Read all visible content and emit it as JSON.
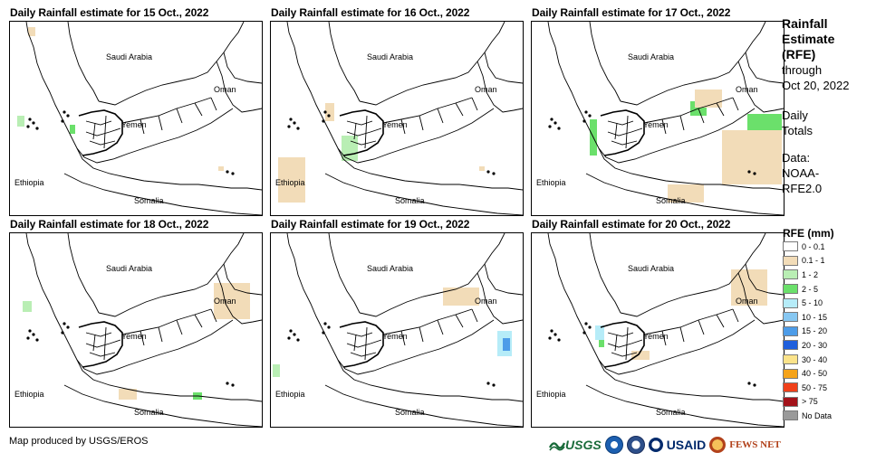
{
  "panels": [
    {
      "title": "Daily Rainfall estimate for 15 Oct., 2022",
      "date": "15 Oct., 2022"
    },
    {
      "title": "Daily Rainfall estimate for 16 Oct., 2022",
      "date": "16 Oct., 2022"
    },
    {
      "title": "Daily Rainfall estimate for 17 Oct., 2022",
      "date": "17 Oct., 2022"
    },
    {
      "title": "Daily Rainfall estimate for 18 Oct., 2022",
      "date": "18 Oct., 2022"
    },
    {
      "title": "Daily Rainfall estimate for 19 Oct., 2022",
      "date": "19 Oct., 2022"
    },
    {
      "title": "Daily Rainfall estimate for 20 Oct., 2022",
      "date": "20 Oct., 2022"
    }
  ],
  "map_labels": {
    "saudi": "Saudi Arabia",
    "oman": "Oman",
    "yemen": "Yemen",
    "ethiopia": "Ethiopia",
    "somalia": "Somalia"
  },
  "sidebar": {
    "title_1": "Rainfall",
    "title_2": "Estimate",
    "title_3": "(RFE)",
    "through": "through",
    "through_date": "Oct 20, 2022",
    "daily_1": "Daily",
    "daily_2": "Totals",
    "data_1": "Data:",
    "data_2": "NOAA-",
    "data_3": "RFE2.0"
  },
  "legend": {
    "title": "RFE (mm)",
    "items": [
      {
        "label": "0 - 0.1",
        "color": "#ffffff"
      },
      {
        "label": "0.1 - 1",
        "color": "#f2dcb8"
      },
      {
        "label": "1 - 2",
        "color": "#b9eeb4"
      },
      {
        "label": "2 - 5",
        "color": "#6be06b"
      },
      {
        "label": "5 - 10",
        "color": "#b6ecf8"
      },
      {
        "label": "10 - 15",
        "color": "#86c7f2"
      },
      {
        "label": "15 - 20",
        "color": "#4d9ce8"
      },
      {
        "label": "20 - 30",
        "color": "#1f5fdc"
      },
      {
        "label": "30 - 40",
        "color": "#fbe38a"
      },
      {
        "label": "40 - 50",
        "color": "#f5a31a"
      },
      {
        "label": "50 - 75",
        "color": "#f0401a"
      },
      {
        "label": "> 75",
        "color": "#a3121a"
      },
      {
        "label": "No Data",
        "color": "#9a9a9a"
      }
    ]
  },
  "footer": {
    "credit": "Map produced by USGS/EROS",
    "logo_usgs": "USGS",
    "logo_usaid": "USAID",
    "logo_fews": "FEWS NET"
  },
  "rain_overlays": [
    [
      {
        "c": "#f2dcb8",
        "x": 20,
        "y": 6,
        "w": 8,
        "h": 10
      },
      {
        "c": "#b9eeb4",
        "x": 8,
        "y": 104,
        "w": 8,
        "h": 12
      },
      {
        "c": "#6be06b",
        "x": 66,
        "y": 114,
        "w": 6,
        "h": 10
      },
      {
        "c": "#f2dcb8",
        "x": 230,
        "y": 160,
        "w": 6,
        "h": 5
      }
    ],
    [
      {
        "c": "#f2dcb8",
        "x": 8,
        "y": 150,
        "w": 30,
        "h": 50
      },
      {
        "c": "#b9eeb4",
        "x": 78,
        "y": 126,
        "w": 18,
        "h": 28
      },
      {
        "c": "#f2dcb8",
        "x": 230,
        "y": 160,
        "w": 6,
        "h": 5
      },
      {
        "c": "#f2dcb8",
        "x": 60,
        "y": 90,
        "w": 10,
        "h": 20
      }
    ],
    [
      {
        "c": "#6be06b",
        "x": 64,
        "y": 108,
        "w": 8,
        "h": 40
      },
      {
        "c": "#6be06b",
        "x": 175,
        "y": 88,
        "w": 18,
        "h": 16
      },
      {
        "c": "#6be06b",
        "x": 238,
        "y": 102,
        "w": 38,
        "h": 40
      },
      {
        "c": "#f2dcb8",
        "x": 210,
        "y": 120,
        "w": 66,
        "h": 60
      },
      {
        "c": "#f2dcb8",
        "x": 150,
        "y": 180,
        "w": 40,
        "h": 20
      },
      {
        "c": "#f2dcb8",
        "x": 180,
        "y": 75,
        "w": 30,
        "h": 20
      }
    ],
    [
      {
        "c": "#f2dcb8",
        "x": 225,
        "y": 55,
        "w": 40,
        "h": 40
      },
      {
        "c": "#b9eeb4",
        "x": 14,
        "y": 75,
        "w": 10,
        "h": 12
      },
      {
        "c": "#f2dcb8",
        "x": 120,
        "y": 172,
        "w": 20,
        "h": 12
      },
      {
        "c": "#6be06b",
        "x": 202,
        "y": 176,
        "w": 10,
        "h": 8
      }
    ],
    [
      {
        "c": "#b6ecf8",
        "x": 250,
        "y": 108,
        "w": 16,
        "h": 28
      },
      {
        "c": "#4d9ce8",
        "x": 256,
        "y": 116,
        "w": 8,
        "h": 14
      },
      {
        "c": "#b9eeb4",
        "x": 2,
        "y": 145,
        "w": 8,
        "h": 14
      },
      {
        "c": "#f2dcb8",
        "x": 190,
        "y": 60,
        "w": 40,
        "h": 20
      }
    ],
    [
      {
        "c": "#b6ecf8",
        "x": 70,
        "y": 102,
        "w": 10,
        "h": 16
      },
      {
        "c": "#f2dcb8",
        "x": 220,
        "y": 40,
        "w": 40,
        "h": 40
      },
      {
        "c": "#f2dcb8",
        "x": 110,
        "y": 130,
        "w": 20,
        "h": 10
      },
      {
        "c": "#6be06b",
        "x": 74,
        "y": 118,
        "w": 6,
        "h": 8
      }
    ]
  ]
}
